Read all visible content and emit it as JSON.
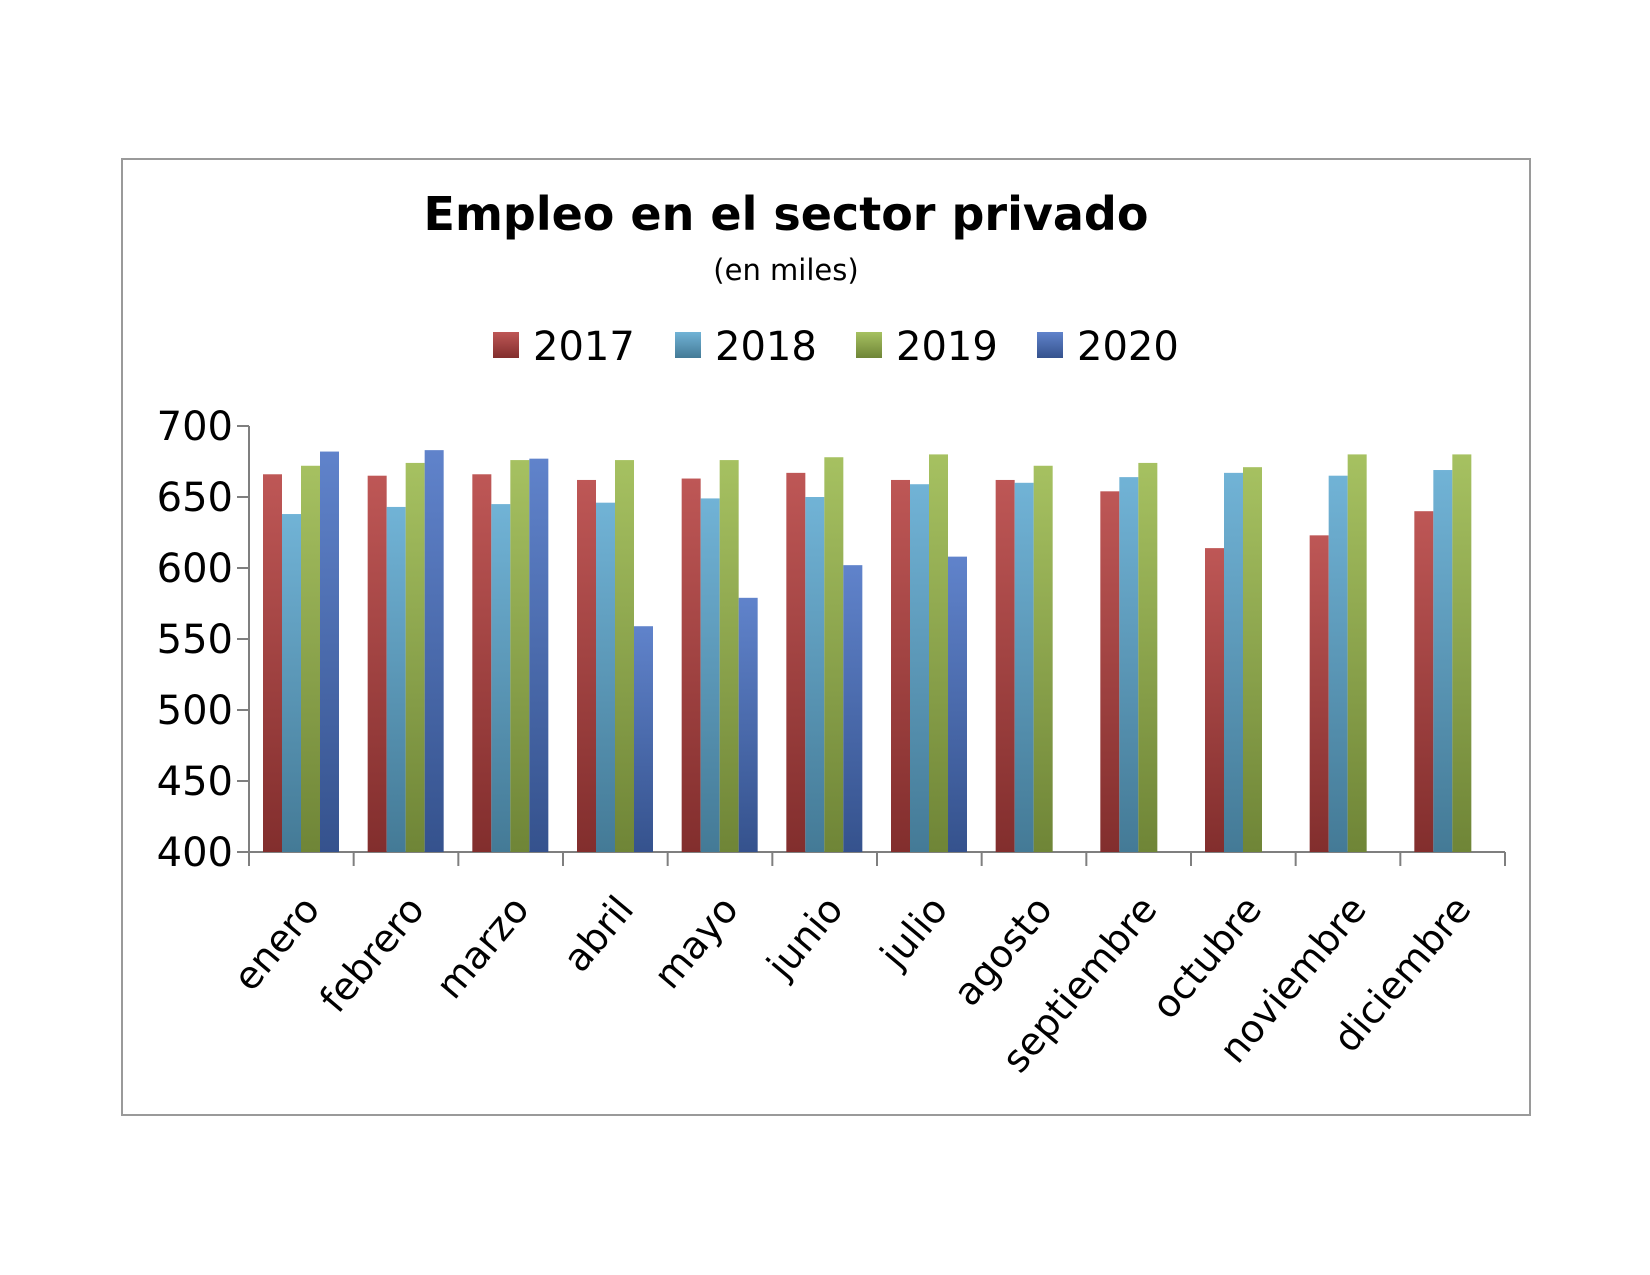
{
  "chart_data": {
    "type": "bar",
    "title": "Empleo en el sector privado",
    "subtitle": "(en miles)",
    "xlabel": "",
    "ylabel": "",
    "ylim": [
      400,
      700
    ],
    "yticks": [
      400,
      450,
      500,
      550,
      600,
      650,
      700
    ],
    "grid": false,
    "legend_position": "top",
    "categories": [
      "enero",
      "febrero",
      "marzo",
      "abril",
      "mayo",
      "junio",
      "julio",
      "agosto",
      "septiembre",
      "octubre",
      "noviembre",
      "diciembre"
    ],
    "series": [
      {
        "name": "2017",
        "color": "#b5403f",
        "values": [
          666,
          665,
          666,
          662,
          663,
          667,
          662,
          662,
          654,
          614,
          623,
          640
        ]
      },
      {
        "name": "2018",
        "color": "#5ea9d0",
        "values": [
          638,
          643,
          645,
          646,
          649,
          650,
          659,
          660,
          664,
          667,
          665,
          669
        ]
      },
      {
        "name": "2019",
        "color": "#9ab94c",
        "values": [
          672,
          674,
          676,
          676,
          676,
          678,
          680,
          672,
          674,
          671,
          680,
          680
        ]
      },
      {
        "name": "2020",
        "color": "#4a72c4",
        "values": [
          682,
          683,
          677,
          559,
          579,
          602,
          608,
          null,
          null,
          null,
          null,
          null
        ]
      }
    ]
  }
}
